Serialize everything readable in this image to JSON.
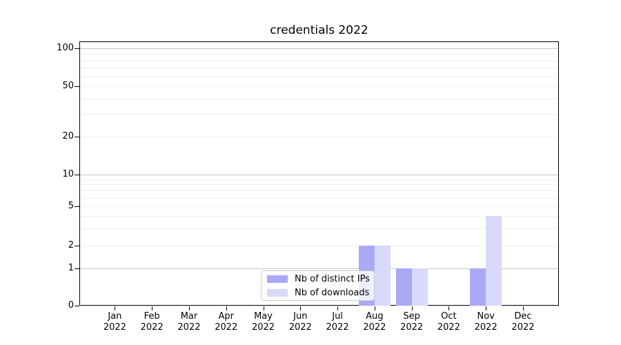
{
  "chart_data": {
    "type": "bar",
    "title": "credentials 2022",
    "categories": [
      "Jan",
      "Feb",
      "Mar",
      "Apr",
      "May",
      "Jun",
      "Jul",
      "Aug",
      "Sep",
      "Oct",
      "Nov",
      "Dec"
    ],
    "year_label": "2022",
    "series": [
      {
        "name": "Nb of distinct IPs",
        "color": "#a9a9f6",
        "values": [
          0,
          0,
          0,
          0,
          0,
          0,
          0,
          2,
          1,
          0,
          1,
          0
        ]
      },
      {
        "name": "Nb of downloads",
        "color": "#d9d9f9",
        "values": [
          0,
          0,
          0,
          0,
          0,
          0,
          0,
          2,
          1,
          0,
          4,
          0
        ]
      }
    ],
    "ylabel": "",
    "xlabel": "",
    "yscale": "symlog",
    "ylim": [
      0,
      113
    ],
    "yticks": [
      0,
      1,
      2,
      5,
      10,
      20,
      50,
      100
    ],
    "grid": true,
    "decade_gridlines": [
      1,
      10,
      100
    ],
    "minor_gridlines": [
      2,
      3,
      4,
      5,
      6,
      7,
      8,
      9,
      20,
      30,
      40,
      50,
      60,
      70,
      80,
      90
    ],
    "legend_position": "lower center",
    "legend_entries": [
      "Nb of distinct IPs",
      "Nb of downloads"
    ]
  },
  "colors": {
    "grid_decade": "#c6c6c6",
    "grid_minor": "#efefef",
    "axis": "#000000",
    "legend_border": "#cccccc",
    "background": "#ffffff"
  }
}
